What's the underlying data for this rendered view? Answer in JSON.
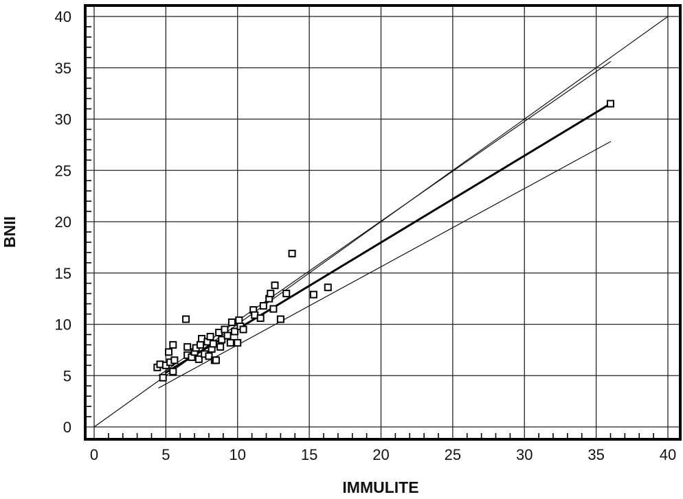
{
  "chart_data": {
    "type": "scatter",
    "title": "",
    "xlabel": "IMMULITE",
    "ylabel": "BNII",
    "xlim": [
      0,
      40
    ],
    "ylim": [
      0,
      40
    ],
    "grid": true,
    "legend": "none",
    "x_ticks": [
      "0",
      "5",
      "10",
      "15",
      "20",
      "25",
      "30",
      "35",
      "40"
    ],
    "y_ticks": [
      "0",
      "5",
      "10",
      "15",
      "20",
      "25",
      "30",
      "35",
      "40"
    ],
    "points": [
      {
        "x": 4.4,
        "y": 5.8
      },
      {
        "x": 4.6,
        "y": 6.1
      },
      {
        "x": 4.8,
        "y": 4.8
      },
      {
        "x": 5.0,
        "y": 6.0
      },
      {
        "x": 5.2,
        "y": 7.3
      },
      {
        "x": 5.3,
        "y": 6.3
      },
      {
        "x": 5.5,
        "y": 5.4
      },
      {
        "x": 5.6,
        "y": 6.5
      },
      {
        "x": 5.5,
        "y": 8.0
      },
      {
        "x": 6.4,
        "y": 10.5
      },
      {
        "x": 6.5,
        "y": 7.0
      },
      {
        "x": 6.5,
        "y": 7.8
      },
      {
        "x": 6.8,
        "y": 6.8
      },
      {
        "x": 7.0,
        "y": 7.3
      },
      {
        "x": 7.1,
        "y": 7.7
      },
      {
        "x": 7.3,
        "y": 6.6
      },
      {
        "x": 7.4,
        "y": 8.0
      },
      {
        "x": 7.5,
        "y": 8.6
      },
      {
        "x": 7.7,
        "y": 7.1
      },
      {
        "x": 7.9,
        "y": 8.3
      },
      {
        "x": 8.0,
        "y": 6.9
      },
      {
        "x": 8.1,
        "y": 8.8
      },
      {
        "x": 8.2,
        "y": 7.6
      },
      {
        "x": 8.3,
        "y": 8.1
      },
      {
        "x": 8.4,
        "y": 6.5
      },
      {
        "x": 8.5,
        "y": 6.5
      },
      {
        "x": 8.7,
        "y": 9.2
      },
      {
        "x": 8.8,
        "y": 7.8
      },
      {
        "x": 8.9,
        "y": 8.5
      },
      {
        "x": 9.1,
        "y": 9.5
      },
      {
        "x": 9.3,
        "y": 8.9
      },
      {
        "x": 9.5,
        "y": 8.2
      },
      {
        "x": 9.6,
        "y": 10.2
      },
      {
        "x": 9.8,
        "y": 9.3
      },
      {
        "x": 10.0,
        "y": 8.2
      },
      {
        "x": 10.1,
        "y": 10.4
      },
      {
        "x": 10.2,
        "y": 9.8
      },
      {
        "x": 10.4,
        "y": 9.5
      },
      {
        "x": 11.1,
        "y": 11.4
      },
      {
        "x": 11.2,
        "y": 10.9
      },
      {
        "x": 11.6,
        "y": 10.6
      },
      {
        "x": 11.8,
        "y": 11.8
      },
      {
        "x": 12.2,
        "y": 12.5
      },
      {
        "x": 12.3,
        "y": 13.0
      },
      {
        "x": 12.5,
        "y": 11.5
      },
      {
        "x": 12.6,
        "y": 13.8
      },
      {
        "x": 13.0,
        "y": 10.5
      },
      {
        "x": 13.4,
        "y": 13.0
      },
      {
        "x": 13.8,
        "y": 16.9
      },
      {
        "x": 15.3,
        "y": 12.9
      },
      {
        "x": 16.3,
        "y": 13.6
      },
      {
        "x": 36.0,
        "y": 31.5
      }
    ],
    "lines": [
      {
        "role": "identity",
        "x": [
          0,
          40
        ],
        "y": [
          0,
          40
        ],
        "stroke": "#111111",
        "width": 1.2
      },
      {
        "role": "regression",
        "x": [
          5,
          36
        ],
        "y": [
          5.3,
          31.5
        ],
        "stroke": "#000000",
        "width": 3
      },
      {
        "role": "upper-bound",
        "x": [
          4.5,
          36
        ],
        "y": [
          5.0,
          35.6
        ],
        "stroke": "#111111",
        "width": 1.2
      },
      {
        "role": "lower-bound",
        "x": [
          4.5,
          36
        ],
        "y": [
          3.8,
          27.8
        ],
        "stroke": "#111111",
        "width": 1.2
      }
    ]
  }
}
